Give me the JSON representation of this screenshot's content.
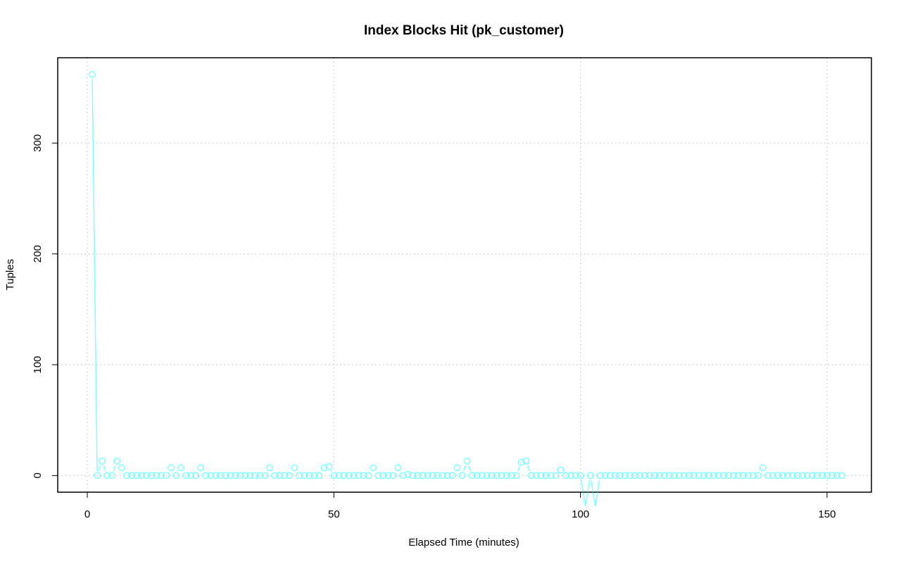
{
  "chart_data": {
    "type": "line",
    "title": "Index Blocks Hit (pk_customer)",
    "xlabel": "Elapsed Time (minutes)",
    "ylabel": "Tuples",
    "xlim": [
      -6,
      159
    ],
    "ylim": [
      -15,
      377
    ],
    "xticks": [
      0,
      50,
      100,
      150
    ],
    "yticks": [
      0,
      100,
      200,
      300
    ],
    "grid": true,
    "line_style": "line with circle markers",
    "series": [
      {
        "color": "#7fffff",
        "x": [
          1,
          2,
          3,
          4,
          5,
          6,
          7,
          8,
          9,
          10,
          11,
          12,
          13,
          14,
          15,
          16,
          17,
          18,
          19,
          20,
          21,
          22,
          23,
          24,
          25,
          26,
          27,
          28,
          29,
          30,
          31,
          32,
          33,
          34,
          35,
          36,
          37,
          38,
          39,
          40,
          41,
          42,
          43,
          44,
          45,
          46,
          47,
          48,
          49,
          50,
          51,
          52,
          53,
          54,
          55,
          56,
          57,
          58,
          59,
          60,
          61,
          62,
          63,
          64,
          65,
          66,
          67,
          68,
          69,
          70,
          71,
          72,
          73,
          74,
          75,
          76,
          77,
          78,
          79,
          80,
          81,
          82,
          83,
          84,
          85,
          86,
          87,
          88,
          89,
          90,
          91,
          92,
          93,
          94,
          95,
          96,
          97,
          98,
          99,
          100,
          101,
          102,
          103,
          104,
          105,
          106,
          107,
          108,
          109,
          110,
          111,
          112,
          113,
          114,
          115,
          116,
          117,
          118,
          119,
          120,
          121,
          122,
          123,
          124,
          125,
          126,
          127,
          128,
          129,
          130,
          131,
          132,
          133,
          134,
          135,
          136,
          137,
          138,
          139,
          140,
          141,
          142,
          143,
          144,
          145,
          146,
          147,
          148,
          149,
          150,
          151,
          152,
          153
        ],
        "values": [
          362,
          0,
          13,
          0,
          0,
          13,
          7,
          0,
          0,
          0,
          0,
          0,
          0,
          0,
          0,
          0,
          7,
          0,
          7,
          0,
          0,
          0,
          7,
          0,
          0,
          0,
          0,
          0,
          0,
          0,
          0,
          0,
          0,
          0,
          0,
          0,
          7,
          0,
          0,
          0,
          0,
          7,
          0,
          0,
          0,
          0,
          0,
          7,
          8,
          0,
          0,
          0,
          0,
          0,
          0,
          0,
          0,
          7,
          0,
          0,
          0,
          0,
          7,
          0,
          1,
          0,
          0,
          0,
          0,
          0,
          0,
          0,
          0,
          0,
          7,
          0,
          13,
          0,
          0,
          0,
          0,
          0,
          0,
          0,
          0,
          0,
          0,
          12,
          13,
          0,
          0,
          0,
          0,
          0,
          0,
          5,
          0,
          0,
          0,
          0,
          null,
          0,
          null,
          0,
          0,
          0,
          0,
          0,
          0,
          0,
          0,
          0,
          0,
          0,
          0,
          0,
          0,
          0,
          0,
          0,
          0,
          0,
          0,
          0,
          0,
          0,
          0,
          0,
          0,
          0,
          0,
          0,
          0,
          0,
          0,
          0,
          7,
          0,
          0,
          0,
          0,
          0,
          0,
          0,
          0,
          0,
          0,
          0,
          0,
          0,
          0,
          0,
          0
        ]
      }
    ]
  }
}
